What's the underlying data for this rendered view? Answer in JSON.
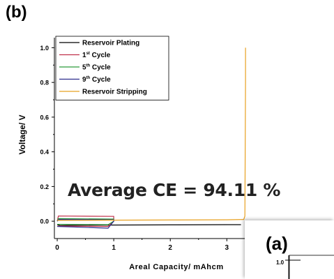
{
  "panel_label": "(b)",
  "inset_label": "(a)",
  "inset_tick_label": "1.0",
  "annotation": "Average CE = 94.11 %",
  "colors": {
    "axis": "#000000",
    "reservoir_plating": "#000000",
    "cycle_1": "#c0304a",
    "cycle_5": "#2a9a3a",
    "cycle_9": "#2c2c8c",
    "reservoir_stripping": "#e8a020"
  },
  "chart_data": {
    "type": "line",
    "title": "",
    "xlabel": "Areal Capacity/ mAhcm",
    "ylabel": "Voltage/ V",
    "xlim": [
      -0.05,
      3.65
    ],
    "ylim": [
      -0.1,
      1.05
    ],
    "x_ticks": [
      0,
      1,
      2,
      3
    ],
    "x_tick_labels": [
      "0",
      "1",
      "2",
      "3"
    ],
    "y_ticks": [
      0.0,
      0.2,
      0.4,
      0.6,
      0.8,
      1.0
    ],
    "y_tick_labels": [
      "0.0",
      "0.2",
      "0.4",
      "0.6",
      "0.8",
      "1.0"
    ],
    "legend_position": "top-left",
    "legend": [
      {
        "base": "Reservoir Plating",
        "sup": "",
        "rest": "",
        "color_key": "reservoir_plating"
      },
      {
        "base": "1",
        "sup": "st",
        "rest": " Cycle",
        "color_key": "cycle_1"
      },
      {
        "base": "5",
        "sup": "th",
        "rest": " Cycle",
        "color_key": "cycle_5"
      },
      {
        "base": "9",
        "sup": "th",
        "rest": " Cycle",
        "color_key": "cycle_9"
      },
      {
        "base": "Reservoir Stripping",
        "sup": "",
        "rest": "",
        "color_key": "reservoir_stripping"
      }
    ],
    "series": [
      {
        "color_key": "reservoir_plating",
        "x": [
          0.0,
          0.05,
          0.3,
          1.0,
          2.0,
          3.0,
          3.25
        ],
        "y": [
          -0.02,
          -0.025,
          -0.023,
          -0.022,
          -0.021,
          -0.02,
          -0.02
        ]
      },
      {
        "color_key": "cycle_1",
        "x": [
          0.0,
          0.02,
          1.0,
          1.0,
          0.9,
          0.0
        ],
        "y": [
          0.0,
          0.03,
          0.028,
          0.0,
          -0.03,
          -0.028
        ]
      },
      {
        "color_key": "cycle_5",
        "x": [
          0.0,
          0.02,
          1.0,
          1.0,
          0.9,
          0.0
        ],
        "y": [
          0.0,
          0.015,
          0.012,
          0.0,
          -0.02,
          -0.018
        ]
      },
      {
        "color_key": "cycle_9",
        "x": [
          0.0,
          0.03,
          1.0,
          1.0,
          0.9,
          0.0
        ],
        "y": [
          0.0,
          0.01,
          0.008,
          0.0,
          -0.04,
          -0.03
        ]
      },
      {
        "color_key": "reservoir_stripping",
        "x": [
          0.0,
          1.0,
          2.0,
          3.0,
          3.3,
          3.32,
          3.33,
          3.33
        ],
        "y": [
          0.005,
          0.006,
          0.007,
          0.008,
          0.01,
          0.03,
          0.8,
          1.0
        ]
      }
    ]
  }
}
